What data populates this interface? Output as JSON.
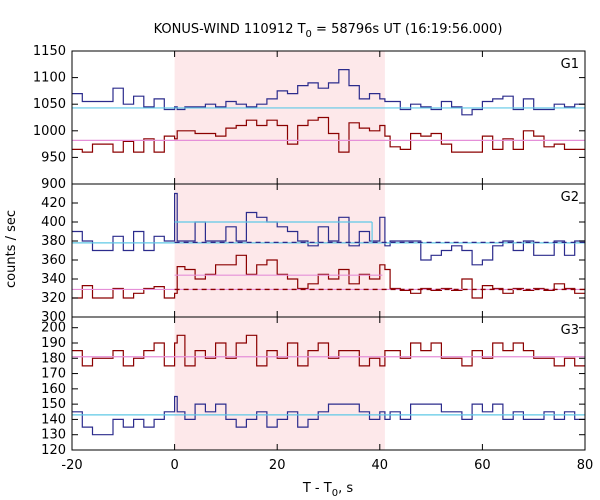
{
  "chart_data": {
    "type": "line",
    "title_main": "KONUS-WIND 110912 T",
    "title_sub": "0",
    "title_rest": " = 58796s UT (16:19:56.000)",
    "ylabel": "counts / sec",
    "xlabel_main": "T - T",
    "xlabel_sub": "0",
    "xlabel_rest": ", s",
    "xlim": [
      -20,
      80
    ],
    "x_ticks": [
      "-20",
      "0",
      "20",
      "40",
      "60",
      "80"
    ],
    "x_tick_values": [
      -20,
      0,
      20,
      40,
      60,
      80
    ],
    "shaded_interval": [
      0,
      41
    ],
    "colors": {
      "blue": "#2b2b8c",
      "red": "#8b0000",
      "bg_blue": "#5fc8e6",
      "bg_red": "#e58fd8",
      "shade": "#fde8ea"
    },
    "bin_edges": [
      -20,
      -18,
      -16,
      -12,
      -10,
      -8,
      -6,
      -4,
      -2,
      0,
      0.5,
      2,
      4,
      6,
      8,
      10,
      12,
      14,
      16,
      18,
      20,
      22,
      24,
      26,
      28,
      30,
      32,
      34,
      36,
      38,
      40,
      41,
      42,
      44,
      46,
      48,
      50,
      52,
      54,
      56,
      58,
      60,
      62,
      64,
      66,
      68,
      70,
      72,
      74,
      76,
      78,
      80
    ],
    "panels": [
      {
        "label": "G1",
        "ylim": [
          900,
          1150
        ],
        "y_ticks": [
          "900",
          "950",
          "1000",
          "1050",
          "1100",
          "1150"
        ],
        "y_tick_values": [
          900,
          950,
          1000,
          1050,
          1100,
          1150
        ],
        "series": [
          {
            "color_key": "blue",
            "values": [
              1070,
              1055,
              1055,
              1080,
              1050,
              1065,
              1045,
              1060,
              1040,
              1045,
              1040,
              1045,
              1045,
              1050,
              1045,
              1055,
              1050,
              1045,
              1050,
              1060,
              1075,
              1070,
              1085,
              1090,
              1080,
              1090,
              1115,
              1085,
              1060,
              1070,
              1060,
              1055,
              1055,
              1040,
              1050,
              1045,
              1040,
              1055,
              1045,
              1030,
              1040,
              1055,
              1060,
              1065,
              1040,
              1060,
              1040,
              1040,
              1050,
              1045,
              1050
            ]
          },
          {
            "color_key": "red",
            "values": [
              965,
              960,
              975,
              960,
              980,
              960,
              985,
              960,
              990,
              985,
              1000,
              1000,
              995,
              995,
              990,
              1005,
              1010,
              1020,
              1010,
              1020,
              1010,
              975,
              1010,
              1020,
              1025,
              995,
              960,
              1015,
              1005,
              1000,
              1010,
              990,
              970,
              965,
              995,
              990,
              995,
              975,
              960,
              960,
              960,
              990,
              965,
              985,
              965,
              1000,
              990,
              970,
              975,
              965,
              965
            ]
          },
          {
            "color_key": "bg_blue",
            "background": true,
            "values": [
              1043
            ]
          },
          {
            "color_key": "bg_red",
            "background": true,
            "values": [
              982
            ]
          }
        ]
      },
      {
        "label": "G2",
        "ylim": [
          300,
          440
        ],
        "y_ticks": [
          "300",
          "320",
          "340",
          "360",
          "380",
          "400",
          "420"
        ],
        "y_tick_values": [
          300,
          320,
          340,
          360,
          380,
          400,
          420
        ],
        "series": [
          {
            "color_key": "blue",
            "values": [
              390,
              380,
              370,
              385,
              370,
              390,
              370,
              385,
              380,
              430,
              380,
              380,
              400,
              380,
              380,
              395,
              380,
              410,
              405,
              400,
              395,
              390,
              380,
              375,
              395,
              380,
              405,
              375,
              390,
              380,
              405,
              375,
              380,
              380,
              380,
              360,
              365,
              370,
              375,
              370,
              355,
              360,
              375,
              380,
              370,
              380,
              365,
              365,
              380,
              365,
              380
            ]
          },
          {
            "color_key": "red",
            "values": [
              320,
              333,
              320,
              330,
              320,
              325,
              330,
              332,
              320,
              325,
              353,
              350,
              340,
              345,
              355,
              355,
              365,
              345,
              355,
              360,
              345,
              340,
              330,
              335,
              345,
              340,
              350,
              335,
              345,
              340,
              355,
              350,
              330,
              328,
              325,
              330,
              328,
              330,
              328,
              340,
              320,
              333,
              330,
              325,
              330,
              328,
              330,
              328,
              335,
              330,
              325
            ]
          },
          {
            "color_key": "bg_blue",
            "background": true,
            "values": [
              378
            ]
          },
          {
            "color_key": "bg_red",
            "background": true,
            "values": [
              329
            ]
          }
        ]
      },
      {
        "label": "G3",
        "ylim": [
          120,
          207
        ],
        "y_ticks": [
          "120",
          "130",
          "140",
          "150",
          "160",
          "170",
          "180",
          "190",
          "200"
        ],
        "y_tick_values": [
          120,
          130,
          140,
          150,
          160,
          170,
          180,
          190,
          200
        ],
        "series": [
          {
            "color_key": "red",
            "values": [
              185,
              175,
              180,
              185,
              175,
              180,
              185,
              190,
              175,
              190,
              195,
              175,
              185,
              180,
              190,
              180,
              190,
              195,
              175,
              185,
              180,
              190,
              175,
              185,
              190,
              180,
              185,
              185,
              175,
              180,
              175,
              185,
              185,
              180,
              190,
              185,
              190,
              180,
              180,
              175,
              185,
              180,
              190,
              185,
              190,
              185,
              180,
              180,
              175,
              180,
              175
            ]
          },
          {
            "color_key": "blue",
            "values": [
              145,
              135,
              130,
              140,
              135,
              140,
              135,
              140,
              145,
              155,
              145,
              140,
              150,
              145,
              150,
              140,
              135,
              140,
              145,
              135,
              140,
              145,
              135,
              140,
              145,
              150,
              150,
              150,
              145,
              140,
              145,
              140,
              145,
              140,
              150,
              150,
              150,
              145,
              145,
              140,
              150,
              145,
              150,
              140,
              145,
              140,
              140,
              145,
              140,
              145,
              140
            ]
          },
          {
            "color_key": "bg_blue",
            "background": true,
            "values": [
              143
            ]
          },
          {
            "color_key": "bg_red",
            "background": true,
            "values": [
              181
            ]
          }
        ]
      }
    ]
  }
}
